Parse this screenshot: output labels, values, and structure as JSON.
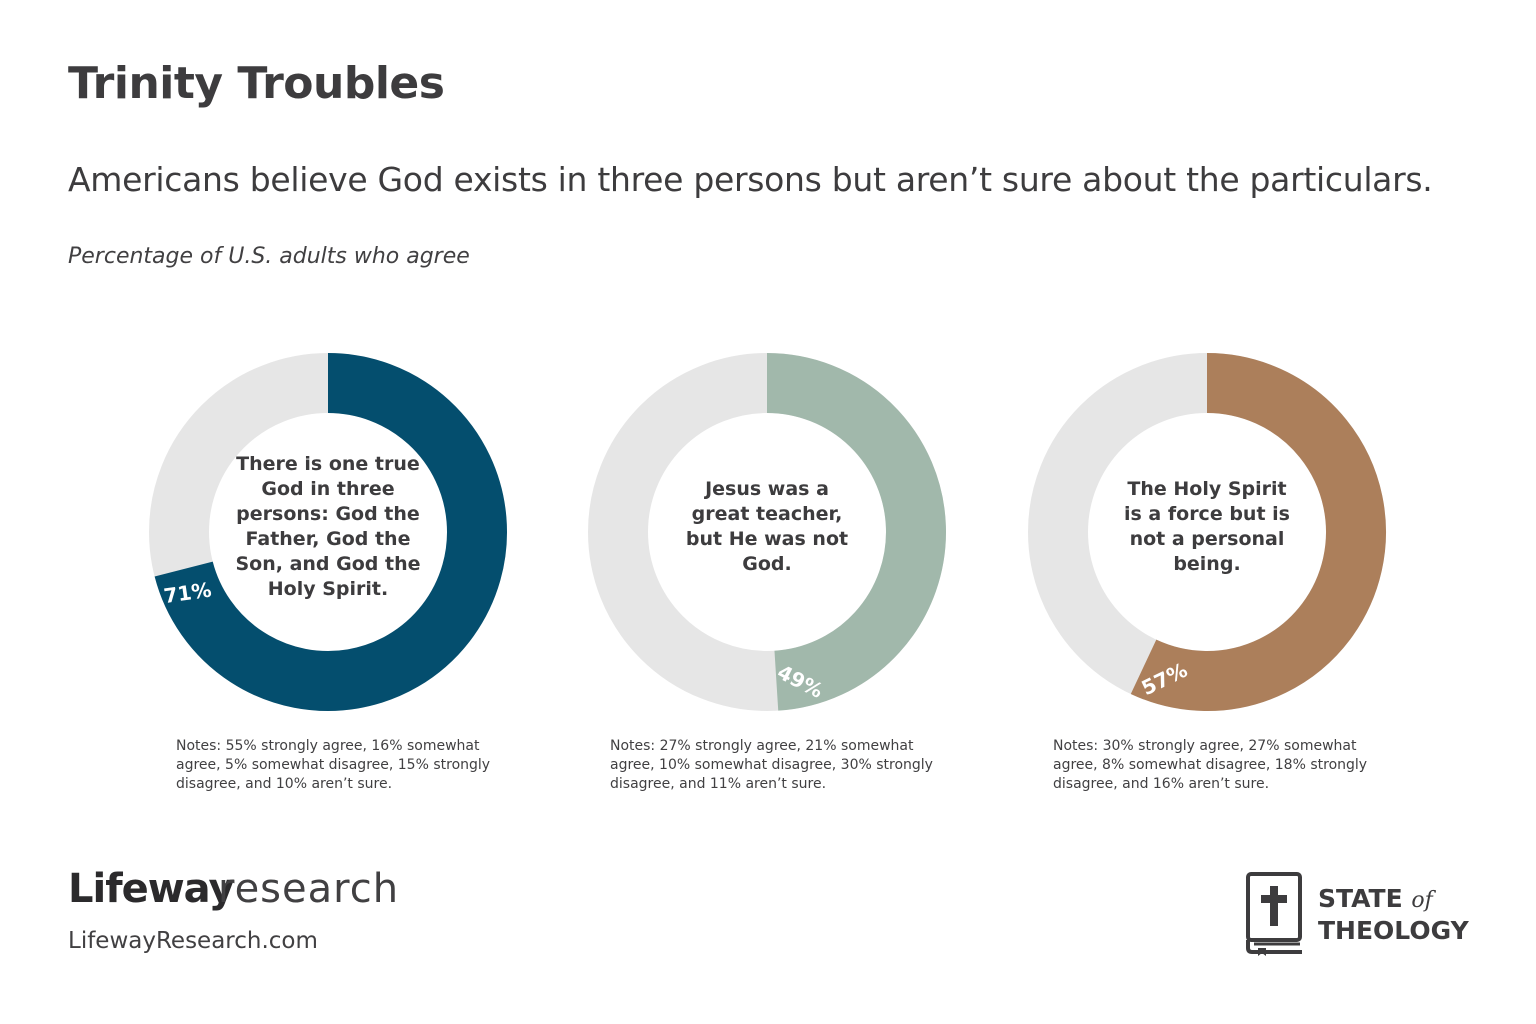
{
  "header": {
    "title": "Trinity Troubles",
    "subtitle": "Americans believe God exists in three persons but aren’t sure about the particulars.",
    "caption": "Percentage of U.S. adults who agree"
  },
  "chart_data": [
    {
      "type": "pie",
      "title": "There is one true God in three persons: God the Father, God the Son, and God the Holy Spirit.",
      "value": 71,
      "value_label": "71%",
      "color": "#044e6e",
      "remainder_color": "#e6e6e6",
      "notes": "Notes: 55% strongly agree, 16% somewhat agree, 5% somewhat disagree, 15% strongly disagree, and 10% aren’t sure."
    },
    {
      "type": "pie",
      "title": "Jesus was a great teacher, but He was not God.",
      "value": 49,
      "value_label": "49%",
      "color": "#a1b8ab",
      "remainder_color": "#e6e6e6",
      "notes": "Notes: 27% strongly agree, 21% somewhat agree, 10% somewhat disagree, 30% strongly disagree, and 11% aren’t sure."
    },
    {
      "type": "pie",
      "title": "The Holy Spirit is a force but is not a personal being.",
      "value": 57,
      "value_label": "57%",
      "color": "#ac7f5b",
      "remainder_color": "#e6e6e6",
      "notes": "Notes: 30% strongly agree, 27% somewhat agree, 8% somewhat disagree, 18% strongly disagree, and 16% aren’t sure."
    }
  ],
  "footer": {
    "brand_word": "Lifeway",
    "brand_research": "research",
    "url": "LifewayResearch.com",
    "sot_line1_a": "STATE",
    "sot_line1_b": "of",
    "sot_line2": "THEOLOGY",
    "book_icon": "cross-book-icon"
  }
}
